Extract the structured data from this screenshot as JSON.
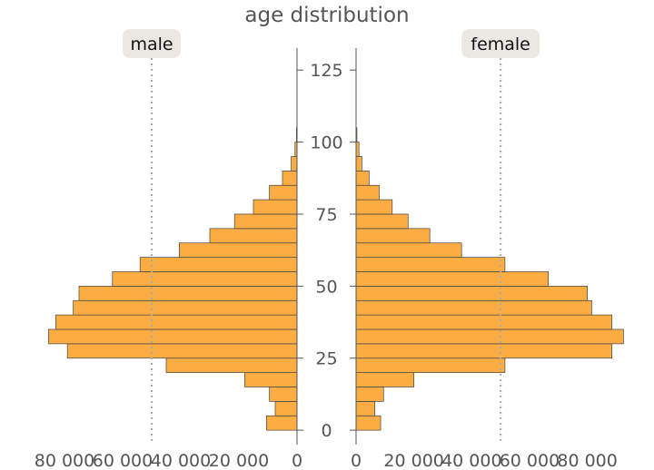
{
  "chart_data": {
    "type": "bar",
    "orientation": "horizontal",
    "layout": "population-pyramid",
    "title": "age distribution",
    "colors": {
      "bar": "#fbac42",
      "bar_edge": "#444444",
      "text": "#555555",
      "badge_bg": "#ebe7e3",
      "reference_line": "#aaaaaa"
    },
    "y_axis": {
      "ylim": [
        -5,
        132
      ],
      "ticks": [
        0,
        25,
        50,
        75,
        100,
        125
      ],
      "tick_labels": [
        "0",
        "25",
        "50",
        "75",
        "100",
        "125"
      ]
    },
    "bin_width": 5,
    "reference_line_value": 50000,
    "panels": [
      {
        "name": "male",
        "direction": "left",
        "xlim": [
          0,
          85000
        ],
        "ticks": [
          80000,
          60000,
          40000,
          20000,
          0
        ],
        "tick_labels": [
          "80 000",
          "60 000",
          "40 000",
          "20 000",
          "0"
        ],
        "bins": [
          {
            "start": 0,
            "value": 10500
          },
          {
            "start": 5,
            "value": 7500
          },
          {
            "start": 10,
            "value": 9500
          },
          {
            "start": 15,
            "value": 18000
          },
          {
            "start": 20,
            "value": 45000
          },
          {
            "start": 25,
            "value": 79000
          },
          {
            "start": 30,
            "value": 85500
          },
          {
            "start": 35,
            "value": 83000
          },
          {
            "start": 40,
            "value": 77000
          },
          {
            "start": 45,
            "value": 75000
          },
          {
            "start": 50,
            "value": 63500
          },
          {
            "start": 55,
            "value": 54000
          },
          {
            "start": 60,
            "value": 40500
          },
          {
            "start": 65,
            "value": 30000
          },
          {
            "start": 70,
            "value": 21500
          },
          {
            "start": 75,
            "value": 15000
          },
          {
            "start": 80,
            "value": 9500
          },
          {
            "start": 85,
            "value": 5000
          },
          {
            "start": 90,
            "value": 2000
          },
          {
            "start": 95,
            "value": 700
          },
          {
            "start": 100,
            "value": 200
          }
        ]
      },
      {
        "name": "female",
        "direction": "right",
        "xlim": [
          0,
          93000
        ],
        "ticks": [
          0,
          20000,
          40000,
          60000,
          80000
        ],
        "tick_labels": [
          "0",
          "20 000",
          "40 000",
          "60 000",
          "80 000"
        ],
        "bins": [
          {
            "start": 0,
            "value": 8500
          },
          {
            "start": 5,
            "value": 6500
          },
          {
            "start": 10,
            "value": 9500
          },
          {
            "start": 15,
            "value": 20000
          },
          {
            "start": 20,
            "value": 51500
          },
          {
            "start": 25,
            "value": 88500
          },
          {
            "start": 30,
            "value": 92500
          },
          {
            "start": 35,
            "value": 88500
          },
          {
            "start": 40,
            "value": 81500
          },
          {
            "start": 45,
            "value": 80000
          },
          {
            "start": 50,
            "value": 66500
          },
          {
            "start": 55,
            "value": 51500
          },
          {
            "start": 60,
            "value": 36500
          },
          {
            "start": 65,
            "value": 25500
          },
          {
            "start": 70,
            "value": 18000
          },
          {
            "start": 75,
            "value": 12500
          },
          {
            "start": 80,
            "value": 8000
          },
          {
            "start": 85,
            "value": 4500
          },
          {
            "start": 90,
            "value": 2000
          },
          {
            "start": 95,
            "value": 1000
          },
          {
            "start": 100,
            "value": 300
          }
        ]
      }
    ]
  }
}
